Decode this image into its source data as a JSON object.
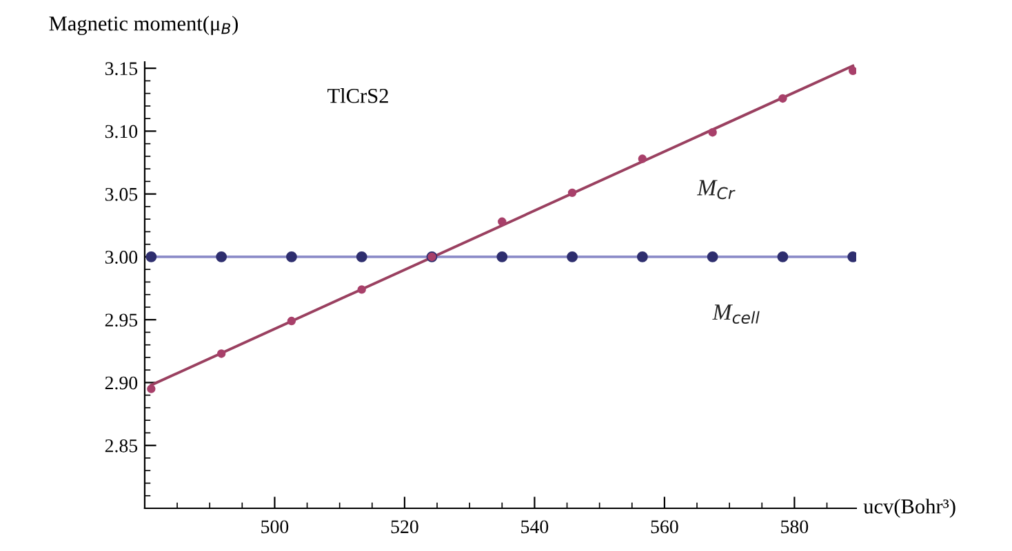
{
  "chart_data": {
    "type": "scatter",
    "xlabel": "ucv(Bohr³)",
    "ylabel": "Magnetic moment(μ$_{B}$)",
    "annotations": [
      "TlCrS2"
    ],
    "xlim": [
      480,
      589.5
    ],
    "xticks": [
      500,
      520,
      540,
      560,
      580
    ],
    "ylim": [
      2.8,
      3.155
    ],
    "yticks": [
      2.85,
      {
        "value": 2.9,
        "label": "2.90"
      },
      2.95,
      {
        "value": 3.0,
        "label": "3.00"
      },
      3.05,
      {
        "value": 3.1,
        "label": "3.10"
      },
      3.15
    ],
    "grid": false,
    "series": [
      {
        "name": "M$_{cell}$",
        "marker": "circle",
        "color": "#2e2e6e",
        "x": [
          481,
          491.8,
          502.6,
          513.4,
          524.2,
          535,
          545.8,
          556.6,
          567.4,
          578.2,
          589
        ],
        "values": [
          3.0,
          3.0,
          3.0,
          3.0,
          3.0,
          3.0,
          3.0,
          3.0,
          3.0,
          3.0,
          3.0
        ]
      },
      {
        "type": "line",
        "color": "#8c8cc8",
        "x": [
          481,
          589
        ],
        "values": [
          3.0,
          3.0
        ]
      },
      {
        "name": "M$_{Cr}$",
        "marker": "circle",
        "color": "#a8406a",
        "x": [
          481,
          491.8,
          502.6,
          513.4,
          524.2,
          535,
          545.8,
          556.6,
          567.4,
          578.2,
          589
        ],
        "values": [
          2.895,
          2.923,
          2.949,
          2.974,
          3.0,
          3.028,
          3.051,
          3.078,
          3.099,
          3.126,
          3.148
        ]
      },
      {
        "type": "line",
        "color": "#9a4060",
        "x": [
          481,
          589
        ],
        "values": [
          2.898,
          3.152
        ]
      }
    ]
  }
}
